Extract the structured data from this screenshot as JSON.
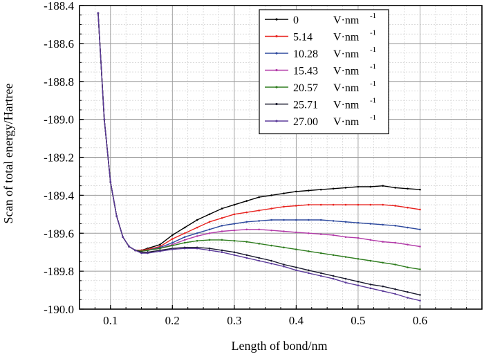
{
  "chart_data": {
    "type": "line",
    "title": "",
    "xlabel": "Length of bond/nm",
    "ylabel": "Scan of total energy/Hartree",
    "xlim": [
      0.05,
      0.7
    ],
    "ylim": [
      -190.0,
      -188.4
    ],
    "x_ticks": [
      0.1,
      0.2,
      0.3,
      0.4,
      0.5,
      0.6
    ],
    "x_tick_labels": [
      "0.1",
      "0.2",
      "0.3",
      "0.4",
      "0.5",
      "0.6"
    ],
    "y_ticks": [
      -188.4,
      -188.6,
      -188.8,
      -189.0,
      -189.2,
      -189.4,
      -189.6,
      -189.8,
      -190.0
    ],
    "y_tick_labels": [
      "-188.4",
      "-188.6",
      "-188.8",
      "-189.0",
      "-189.2",
      "-189.4",
      "-189.6",
      "-189.8",
      "-190.0"
    ],
    "grid": true,
    "legend_position": "top-right",
    "series": [
      {
        "name": "0",
        "unit": "V·nm",
        "exponent": "-1",
        "color": "#000000",
        "x": [
          0.08,
          0.09,
          0.1,
          0.11,
          0.12,
          0.13,
          0.14,
          0.15,
          0.16,
          0.18,
          0.2,
          0.22,
          0.24,
          0.26,
          0.28,
          0.3,
          0.32,
          0.34,
          0.36,
          0.38,
          0.4,
          0.42,
          0.44,
          0.46,
          0.48,
          0.5,
          0.52,
          0.54,
          0.56,
          0.58,
          0.6
        ],
        "y": [
          -188.44,
          -189.0,
          -189.33,
          -189.51,
          -189.62,
          -189.67,
          -189.69,
          -189.69,
          -189.68,
          -189.66,
          -189.61,
          -189.57,
          -189.53,
          -189.5,
          -189.47,
          -189.45,
          -189.43,
          -189.41,
          -189.4,
          -189.39,
          -189.38,
          -189.375,
          -189.37,
          -189.365,
          -189.36,
          -189.355,
          -189.355,
          -189.35,
          -189.36,
          -189.365,
          -189.37
        ]
      },
      {
        "name": "5.14",
        "unit": "V·nm",
        "exponent": "-1",
        "color": "#e8231f",
        "x": [
          0.08,
          0.09,
          0.1,
          0.11,
          0.12,
          0.13,
          0.14,
          0.15,
          0.16,
          0.18,
          0.2,
          0.22,
          0.24,
          0.26,
          0.28,
          0.3,
          0.32,
          0.34,
          0.36,
          0.38,
          0.4,
          0.42,
          0.44,
          0.46,
          0.48,
          0.5,
          0.52,
          0.54,
          0.56,
          0.58,
          0.6
        ],
        "y": [
          -188.44,
          -189.0,
          -189.33,
          -189.51,
          -189.62,
          -189.67,
          -189.69,
          -189.69,
          -189.685,
          -189.67,
          -189.63,
          -189.6,
          -189.57,
          -189.54,
          -189.52,
          -189.5,
          -189.49,
          -189.48,
          -189.47,
          -189.46,
          -189.455,
          -189.45,
          -189.45,
          -189.45,
          -189.45,
          -189.45,
          -189.45,
          -189.45,
          -189.455,
          -189.465,
          -189.475
        ]
      },
      {
        "name": "10.28",
        "unit": "V·nm",
        "exponent": "-1",
        "color": "#2e4a9e",
        "x": [
          0.08,
          0.09,
          0.1,
          0.11,
          0.12,
          0.13,
          0.14,
          0.15,
          0.16,
          0.18,
          0.2,
          0.22,
          0.24,
          0.26,
          0.28,
          0.3,
          0.32,
          0.34,
          0.36,
          0.38,
          0.4,
          0.42,
          0.44,
          0.46,
          0.48,
          0.5,
          0.52,
          0.54,
          0.56,
          0.58,
          0.6
        ],
        "y": [
          -188.44,
          -189.0,
          -189.33,
          -189.51,
          -189.62,
          -189.67,
          -189.69,
          -189.695,
          -189.69,
          -189.675,
          -189.65,
          -189.62,
          -189.6,
          -189.58,
          -189.56,
          -189.55,
          -189.54,
          -189.535,
          -189.53,
          -189.53,
          -189.53,
          -189.53,
          -189.53,
          -189.535,
          -189.54,
          -189.545,
          -189.55,
          -189.555,
          -189.56,
          -189.57,
          -189.58
        ]
      },
      {
        "name": "15.43",
        "unit": "V·nm",
        "exponent": "-1",
        "color": "#b23aa8",
        "x": [
          0.08,
          0.09,
          0.1,
          0.11,
          0.12,
          0.13,
          0.14,
          0.15,
          0.16,
          0.18,
          0.2,
          0.22,
          0.24,
          0.26,
          0.28,
          0.3,
          0.32,
          0.34,
          0.36,
          0.38,
          0.4,
          0.42,
          0.44,
          0.46,
          0.48,
          0.5,
          0.52,
          0.54,
          0.56,
          0.58,
          0.6
        ],
        "y": [
          -188.44,
          -189.0,
          -189.33,
          -189.51,
          -189.62,
          -189.67,
          -189.69,
          -189.695,
          -189.69,
          -189.68,
          -189.66,
          -189.635,
          -189.615,
          -189.6,
          -189.59,
          -189.585,
          -189.58,
          -189.58,
          -189.585,
          -189.59,
          -189.595,
          -189.6,
          -189.605,
          -189.61,
          -189.62,
          -189.625,
          -189.635,
          -189.645,
          -189.65,
          -189.66,
          -189.67
        ]
      },
      {
        "name": "20.57",
        "unit": "V·nm",
        "exponent": "-1",
        "color": "#2f7d1f",
        "x": [
          0.08,
          0.09,
          0.1,
          0.11,
          0.12,
          0.13,
          0.14,
          0.15,
          0.16,
          0.18,
          0.2,
          0.22,
          0.24,
          0.26,
          0.28,
          0.3,
          0.32,
          0.34,
          0.36,
          0.38,
          0.4,
          0.42,
          0.44,
          0.46,
          0.48,
          0.5,
          0.52,
          0.54,
          0.56,
          0.58,
          0.6
        ],
        "y": [
          -188.44,
          -189.0,
          -189.33,
          -189.51,
          -189.62,
          -189.67,
          -189.69,
          -189.695,
          -189.69,
          -189.68,
          -189.665,
          -189.65,
          -189.64,
          -189.635,
          -189.635,
          -189.64,
          -189.645,
          -189.655,
          -189.665,
          -189.675,
          -189.685,
          -189.695,
          -189.705,
          -189.715,
          -189.725,
          -189.735,
          -189.745,
          -189.755,
          -189.765,
          -189.78,
          -189.79
        ]
      },
      {
        "name": "25.71",
        "unit": "V·nm",
        "exponent": "-1",
        "color": "#1a1a2e",
        "x": [
          0.08,
          0.09,
          0.1,
          0.11,
          0.12,
          0.13,
          0.14,
          0.15,
          0.16,
          0.18,
          0.2,
          0.22,
          0.24,
          0.26,
          0.28,
          0.3,
          0.32,
          0.34,
          0.36,
          0.38,
          0.4,
          0.42,
          0.44,
          0.46,
          0.48,
          0.5,
          0.52,
          0.54,
          0.56,
          0.58,
          0.6
        ],
        "y": [
          -188.44,
          -189.0,
          -189.33,
          -189.51,
          -189.62,
          -189.67,
          -189.69,
          -189.7,
          -189.7,
          -189.69,
          -189.68,
          -189.675,
          -189.675,
          -189.68,
          -189.69,
          -189.7,
          -189.715,
          -189.73,
          -189.745,
          -189.765,
          -189.78,
          -189.795,
          -189.81,
          -189.825,
          -189.84,
          -189.855,
          -189.87,
          -189.88,
          -189.895,
          -189.91,
          -189.925
        ]
      },
      {
        "name": "27.00",
        "unit": "V·nm",
        "exponent": "-1",
        "color": "#5b3a9a",
        "x": [
          0.08,
          0.09,
          0.1,
          0.11,
          0.12,
          0.13,
          0.14,
          0.15,
          0.16,
          0.18,
          0.2,
          0.22,
          0.24,
          0.26,
          0.28,
          0.3,
          0.32,
          0.34,
          0.36,
          0.38,
          0.4,
          0.42,
          0.44,
          0.46,
          0.48,
          0.5,
          0.52,
          0.54,
          0.56,
          0.58,
          0.6
        ],
        "y": [
          -188.44,
          -189.0,
          -189.33,
          -189.51,
          -189.62,
          -189.67,
          -189.69,
          -189.705,
          -189.705,
          -189.695,
          -189.685,
          -189.68,
          -189.68,
          -189.69,
          -189.7,
          -189.715,
          -189.73,
          -189.745,
          -189.76,
          -189.775,
          -189.795,
          -189.81,
          -189.825,
          -189.84,
          -189.86,
          -189.875,
          -189.89,
          -189.905,
          -189.92,
          -189.94,
          -189.955
        ]
      }
    ]
  }
}
